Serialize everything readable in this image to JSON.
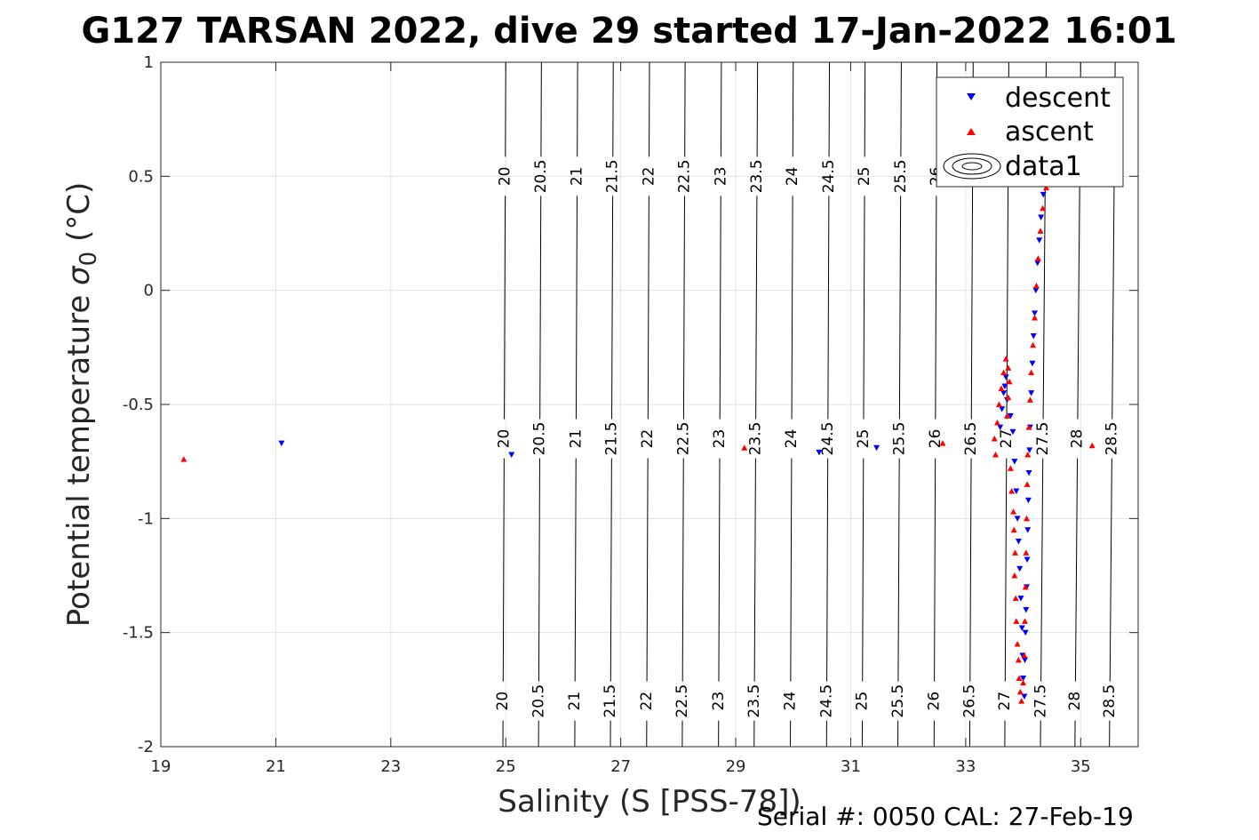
{
  "chart_data": {
    "type": "scatter",
    "title": "G127 TARSAN 2022, dive 29 started 17-Jan-2022 16:01",
    "xlabel": "Salinity (S [PSS-78])",
    "ylabel_main": "Potential temperature ",
    "ylabel_sigma": "σ",
    "ylabel_sub": "0",
    "ylabel_unit": " (°C)",
    "xlim": [
      19,
      36
    ],
    "ylim": [
      -2,
      1
    ],
    "xticks": [
      "19",
      "21",
      "23",
      "25",
      "27",
      "29",
      "31",
      "33",
      "35"
    ],
    "xtick_values": [
      19,
      21,
      23,
      25,
      27,
      29,
      31,
      33,
      35
    ],
    "yticks": [
      "1",
      "0.5",
      "0",
      "-0.5",
      "-1",
      "-1.5",
      "-2"
    ],
    "ytick_values": [
      1,
      0.5,
      0,
      -0.5,
      -1,
      -1.5,
      -2
    ],
    "grid": true,
    "legend_position": "top-right",
    "legend": [
      "descent",
      "ascent",
      "data1"
    ],
    "density_contours": {
      "levels": [
        "20",
        "20.5",
        "21",
        "21.5",
        "22",
        "22.5",
        "23",
        "23.5",
        "24",
        "24.5",
        "25",
        "25.5",
        "26",
        "26.5",
        "27",
        "27.5",
        "28",
        "28.5"
      ],
      "salinity_at_top": [
        25.0,
        25.62,
        26.25,
        26.87,
        27.5,
        28.12,
        28.75,
        29.38,
        30.0,
        30.63,
        31.25,
        31.88,
        32.5,
        33.13,
        33.75,
        34.4,
        35.0,
        35.6
      ],
      "salinity_at_bottom": [
        24.95,
        25.57,
        26.2,
        26.82,
        27.45,
        28.07,
        28.7,
        29.32,
        29.95,
        30.58,
        31.2,
        31.82,
        32.45,
        33.07,
        33.68,
        34.3,
        34.9,
        35.5
      ],
      "labels_shown_at_top": [
        "20",
        "20.5",
        "21",
        "21.5",
        "22",
        "22.5",
        "23",
        "23.5",
        "24",
        "24.5",
        "25",
        "25.5",
        "26"
      ],
      "labels_shown_at_middle": [
        "20",
        "20.5",
        "21",
        "21.5",
        "22",
        "22.5",
        "23",
        "23.5",
        "24",
        "24.5",
        "25",
        "25.5",
        "26",
        "26.5",
        "27",
        "27.5",
        "28",
        "28.5"
      ],
      "labels_shown_at_bottom": [
        "20",
        "20.5",
        "21",
        "21.5",
        "22",
        "22.5",
        "23",
        "23.5",
        "24",
        "24.5",
        "25",
        "25.5",
        "26",
        "26.5",
        "27",
        "27.5",
        "28",
        "28.5"
      ]
    },
    "series": [
      {
        "name": "descent",
        "marker": "triangle-down",
        "color": "#0000ff",
        "points": [
          [
            21.1,
            -0.67
          ],
          [
            25.1,
            -0.72
          ],
          [
            30.45,
            -0.71
          ],
          [
            31.45,
            -0.69
          ],
          [
            33.6,
            -0.6
          ],
          [
            33.63,
            -0.52
          ],
          [
            33.66,
            -0.45
          ],
          [
            33.7,
            -0.38
          ],
          [
            33.68,
            -0.42
          ],
          [
            33.72,
            -0.48
          ],
          [
            33.78,
            -0.55
          ],
          [
            33.82,
            -0.62
          ],
          [
            33.85,
            -0.75
          ],
          [
            33.88,
            -0.88
          ],
          [
            33.9,
            -1.0
          ],
          [
            33.92,
            -1.1
          ],
          [
            33.94,
            -1.22
          ],
          [
            33.96,
            -1.35
          ],
          [
            33.98,
            -1.48
          ],
          [
            33.99,
            -1.6
          ],
          [
            34.0,
            -1.7
          ],
          [
            34.02,
            -1.78
          ],
          [
            34.03,
            -1.62
          ],
          [
            34.04,
            -1.5
          ],
          [
            34.05,
            -1.4
          ],
          [
            34.06,
            -1.3
          ],
          [
            34.07,
            -1.18
          ],
          [
            34.08,
            -1.05
          ],
          [
            34.09,
            -0.92
          ],
          [
            34.1,
            -0.8
          ],
          [
            34.11,
            -0.7
          ],
          [
            34.12,
            -0.6
          ],
          [
            34.14,
            -0.45
          ],
          [
            34.16,
            -0.32
          ],
          [
            34.18,
            -0.2
          ],
          [
            34.2,
            -0.1
          ],
          [
            34.22,
            0.0
          ],
          [
            34.25,
            0.12
          ],
          [
            34.28,
            0.22
          ],
          [
            34.31,
            0.32
          ],
          [
            34.35,
            0.42
          ],
          [
            34.38,
            0.48
          ]
        ]
      },
      {
        "name": "ascent",
        "marker": "triangle-up",
        "color": "#ff0000",
        "points": [
          [
            19.4,
            -0.74
          ],
          [
            29.15,
            -0.69
          ],
          [
            32.6,
            -0.67
          ],
          [
            35.2,
            -0.68
          ],
          [
            33.5,
            -0.65
          ],
          [
            33.52,
            -0.72
          ],
          [
            33.55,
            -0.58
          ],
          [
            33.58,
            -0.5
          ],
          [
            33.62,
            -0.43
          ],
          [
            33.66,
            -0.36
          ],
          [
            33.7,
            -0.3
          ],
          [
            33.74,
            -0.34
          ],
          [
            33.76,
            -0.4
          ],
          [
            33.74,
            -0.47
          ],
          [
            33.72,
            -0.55
          ],
          [
            33.78,
            -0.78
          ],
          [
            33.8,
            -0.88
          ],
          [
            33.83,
            -0.97
          ],
          [
            33.84,
            -1.05
          ],
          [
            33.86,
            -1.15
          ],
          [
            33.85,
            -1.25
          ],
          [
            33.87,
            -1.35
          ],
          [
            33.88,
            -1.45
          ],
          [
            33.9,
            -1.55
          ],
          [
            33.92,
            -1.62
          ],
          [
            33.93,
            -1.7
          ],
          [
            33.95,
            -1.76
          ],
          [
            33.97,
            -1.8
          ],
          [
            34.0,
            -1.72
          ],
          [
            34.02,
            -1.6
          ],
          [
            34.03,
            -1.45
          ],
          [
            34.04,
            -1.3
          ],
          [
            34.05,
            -1.15
          ],
          [
            34.06,
            -1.0
          ],
          [
            34.07,
            -0.85
          ],
          [
            34.08,
            -0.72
          ],
          [
            34.1,
            -0.6
          ],
          [
            34.12,
            -0.48
          ],
          [
            34.14,
            -0.36
          ],
          [
            34.17,
            -0.24
          ],
          [
            34.2,
            -0.12
          ],
          [
            34.23,
            0.02
          ],
          [
            34.26,
            0.14
          ],
          [
            34.3,
            0.26
          ],
          [
            34.34,
            0.36
          ],
          [
            34.4,
            0.45
          ]
        ]
      }
    ]
  },
  "footer": {
    "serial_text": "Serial #: 0050  CAL: 27-Feb-19"
  }
}
